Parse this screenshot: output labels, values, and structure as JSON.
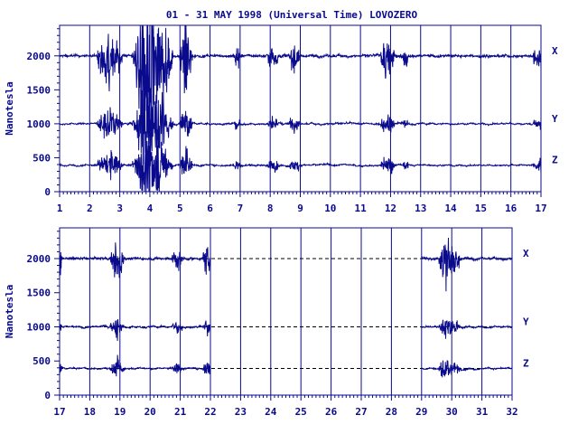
{
  "chart_data": {
    "title": "01 - 31 MAY 1998 (Universal Time) LOVOZERO",
    "type": "line",
    "ylabel": "Nanotesla",
    "unit": "nT",
    "colors": {
      "trace": "#0a0a8c",
      "axis": "#0a0a8c",
      "dashed": "#000000"
    },
    "yticks": [
      0,
      500,
      1000,
      1500,
      2000
    ],
    "ylim": [
      0,
      2450
    ],
    "panels": [
      {
        "name": "upper-panel",
        "xlim": [
          1,
          17
        ],
        "xticks": [
          "1",
          "2",
          "3",
          "4",
          "5",
          "6",
          "7",
          "8",
          "9",
          "10",
          "11",
          "12",
          "13",
          "14",
          "15",
          "16",
          "17"
        ],
        "data_ranges": [
          [
            1,
            17
          ]
        ],
        "series": [
          {
            "name": "X",
            "baseline": 2000
          },
          {
            "name": "Y",
            "baseline": 1000
          },
          {
            "name": "Z",
            "baseline": 390
          }
        ]
      },
      {
        "name": "lower-panel",
        "xlim": [
          17,
          32
        ],
        "xticks": [
          "17",
          "18",
          "19",
          "20",
          "21",
          "22",
          "23",
          "24",
          "25",
          "26",
          "27",
          "28",
          "29",
          "30",
          "31",
          "32"
        ],
        "data_ranges": [
          [
            17,
            22
          ],
          [
            29,
            32
          ]
        ],
        "series": [
          {
            "name": "X",
            "baseline": 2000
          },
          {
            "name": "Y",
            "baseline": 1000
          },
          {
            "name": "Z",
            "baseline": 390
          }
        ]
      }
    ]
  }
}
